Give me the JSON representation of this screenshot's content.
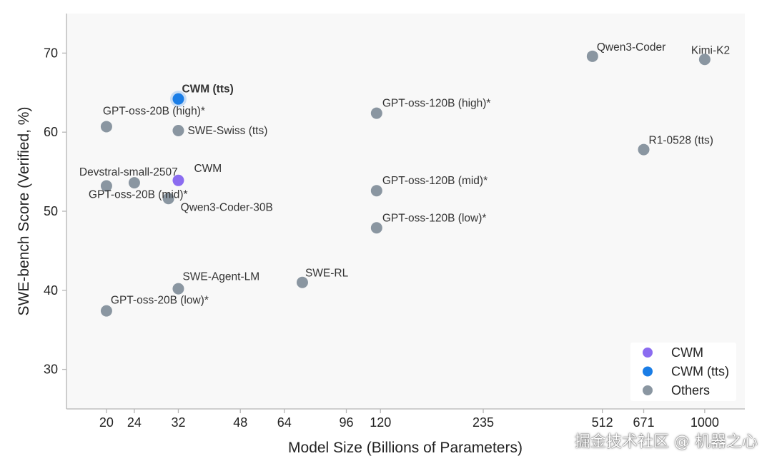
{
  "chart_data": {
    "type": "scatter",
    "xlabel": "Model Size (Billions of Parameters)",
    "ylabel": "SWE-bench Score (Verified, %)",
    "x_scale": "log",
    "xlim": [
      15.4,
      1300
    ],
    "ylim": [
      25,
      75
    ],
    "x_ticks": [
      20,
      24,
      32,
      48,
      64,
      96,
      120,
      235,
      512,
      671,
      1000
    ],
    "y_ticks": [
      30,
      40,
      50,
      60,
      70
    ],
    "grid": false,
    "legend_position": "bottom-right",
    "series": [
      {
        "name": "CWM",
        "color": "#8b6cf0",
        "points": [
          {
            "x": 32,
            "y": 53.9,
            "label": "CWM"
          }
        ]
      },
      {
        "name": "CWM (tts)",
        "color": "#1a7de6",
        "points": [
          {
            "x": 32,
            "y": 64.2,
            "label": "CWM (tts)"
          }
        ]
      },
      {
        "name": "Others",
        "color": "#8a96a1",
        "points": [
          {
            "x": 20,
            "y": 60.7,
            "label": "GPT-oss-20B (high)*"
          },
          {
            "x": 32,
            "y": 60.2,
            "label": "SWE-Swiss (tts)"
          },
          {
            "x": 20,
            "y": 53.2,
            "label": "GPT-oss-20B (mid)*"
          },
          {
            "x": 24,
            "y": 53.6,
            "label": "Devstral-small-2507"
          },
          {
            "x": 30,
            "y": 51.6,
            "label": "Qwen3-Coder-30B"
          },
          {
            "x": 32,
            "y": 40.2,
            "label": "SWE-Agent-LM"
          },
          {
            "x": 72,
            "y": 41.0,
            "label": "SWE-RL"
          },
          {
            "x": 20,
            "y": 37.4,
            "label": "GPT-oss-20B (low)*"
          },
          {
            "x": 117,
            "y": 62.4,
            "label": "GPT-oss-120B (high)*"
          },
          {
            "x": 117,
            "y": 52.6,
            "label": "GPT-oss-120B (mid)*"
          },
          {
            "x": 117,
            "y": 47.9,
            "label": "GPT-oss-120B (low)*"
          },
          {
            "x": 480,
            "y": 69.6,
            "label": "Qwen3-Coder"
          },
          {
            "x": 1000,
            "y": 69.2,
            "label": "Kimi-K2"
          },
          {
            "x": 671,
            "y": 57.8,
            "label": "R1-0528 (tts)"
          }
        ]
      }
    ]
  },
  "watermark": "掘金技术社区 @ 机器之心",
  "colors": {
    "plot_background": "#f8f8f8",
    "axis": "#b5b5b5",
    "label_default": "#333333"
  }
}
